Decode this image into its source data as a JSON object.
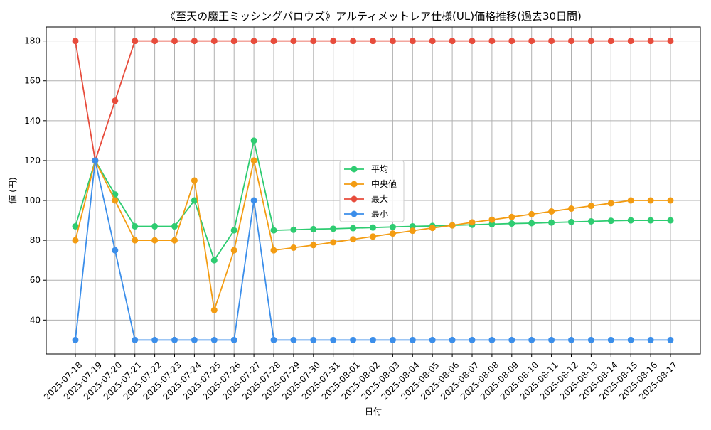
{
  "chart_data": {
    "type": "line",
    "title": "《至天の魔王ミッシングバロウズ》アルティメットレア仕様(UL)価格推移(過去30日間)",
    "xlabel": "日付",
    "ylabel": "値 (円)",
    "x": [
      "2025-07-18",
      "2025-07-19",
      "2025-07-20",
      "2025-07-21",
      "2025-07-22",
      "2025-07-23",
      "2025-07-24",
      "2025-07-25",
      "2025-07-26",
      "2025-07-27",
      "2025-07-28",
      "2025-07-29",
      "2025-07-30",
      "2025-07-31",
      "2025-08-01",
      "2025-08-02",
      "2025-08-03",
      "2025-08-04",
      "2025-08-05",
      "2025-08-06",
      "2025-08-07",
      "2025-08-08",
      "2025-08-09",
      "2025-08-10",
      "2025-08-11",
      "2025-08-12",
      "2025-08-13",
      "2025-08-14",
      "2025-08-15",
      "2025-08-16",
      "2025-08-17"
    ],
    "ylim": [
      23,
      187
    ],
    "yticks": [
      40,
      60,
      80,
      100,
      120,
      140,
      160,
      180
    ],
    "grid": true,
    "legend_position": "center",
    "series": [
      {
        "name": "平均",
        "color": "#2ecc71",
        "values": [
          87,
          120,
          103,
          87,
          87,
          87,
          100,
          70,
          85,
          130,
          85,
          85.3,
          85.6,
          85.8,
          86.1,
          86.4,
          86.7,
          87,
          87.2,
          87.5,
          87.8,
          88.1,
          88.4,
          88.6,
          88.9,
          89.2,
          89.5,
          89.8,
          90,
          90,
          90
        ]
      },
      {
        "name": "中央値",
        "color": "#f39c12",
        "values": [
          80,
          120,
          100,
          80,
          80,
          80,
          110,
          45,
          75,
          120,
          75,
          76.3,
          77.6,
          79,
          80.5,
          81.9,
          83.4,
          84.8,
          86.2,
          87.5,
          89,
          90.3,
          91.7,
          93.1,
          94.5,
          95.9,
          97.3,
          98.6,
          100,
          100,
          100
        ]
      },
      {
        "name": "最大",
        "color": "#e74c3c",
        "values": [
          180,
          120,
          150,
          180,
          180,
          180,
          180,
          180,
          180,
          180,
          180,
          180,
          180,
          180,
          180,
          180,
          180,
          180,
          180,
          180,
          180,
          180,
          180,
          180,
          180,
          180,
          180,
          180,
          180,
          180,
          180
        ]
      },
      {
        "name": "最小",
        "color": "#3b8eea",
        "values": [
          30,
          120,
          75,
          30,
          30,
          30,
          30,
          30,
          30,
          100,
          30,
          30,
          30,
          30,
          30,
          30,
          30,
          30,
          30,
          30,
          30,
          30,
          30,
          30,
          30,
          30,
          30,
          30,
          30,
          30,
          30
        ]
      }
    ]
  }
}
